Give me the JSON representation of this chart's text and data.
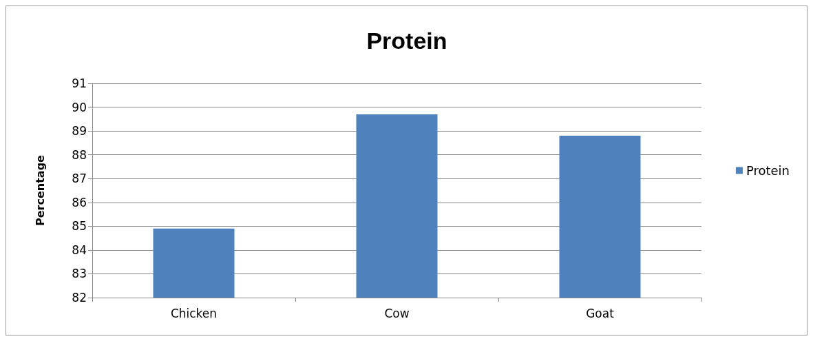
{
  "chart_data": {
    "type": "bar",
    "title": "Protein",
    "ylabel": "Percentage",
    "categories": [
      "Chicken",
      "Cow",
      "Goat"
    ],
    "series": [
      {
        "name": "Protein",
        "color": "#4f81bd",
        "values": [
          84.9,
          89.7,
          88.8
        ]
      }
    ],
    "ylim": [
      82,
      91
    ],
    "yticks": [
      82,
      83,
      84,
      85,
      86,
      87,
      88,
      89,
      90,
      91
    ],
    "grid": "y",
    "legend": "right"
  }
}
